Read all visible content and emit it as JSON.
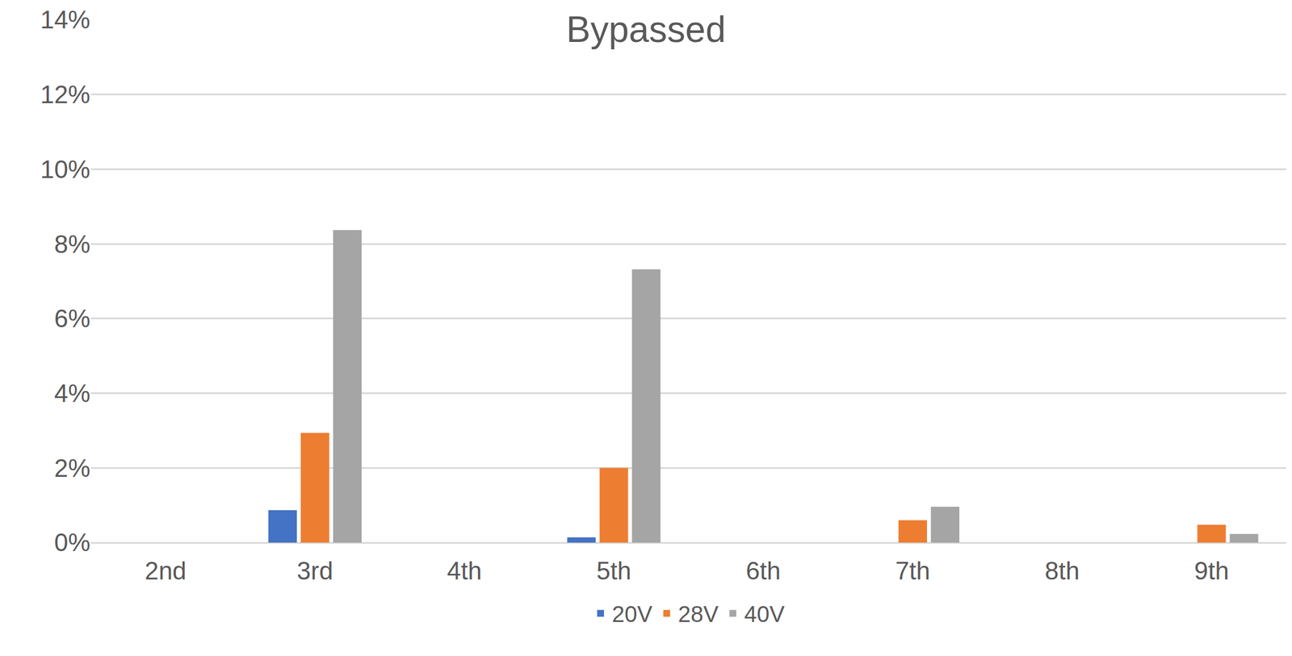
{
  "chart_data": {
    "type": "bar",
    "title": "Bypassed",
    "categories": [
      "2nd",
      "3rd",
      "4th",
      "5th",
      "6th",
      "7th",
      "8th",
      "9th"
    ],
    "series": [
      {
        "name": "20V",
        "color": "#4472c4",
        "values": [
          0,
          0.87,
          0,
          0.14,
          0,
          0,
          0,
          0
        ]
      },
      {
        "name": "28V",
        "color": "#ed7d31",
        "values": [
          0,
          2.94,
          0,
          2.0,
          0,
          0.6,
          0,
          0.48
        ]
      },
      {
        "name": "40V",
        "color": "#a5a5a5",
        "values": [
          0,
          8.37,
          0,
          7.32,
          0,
          0.96,
          0,
          0.23
        ]
      }
    ],
    "ylim": [
      0,
      14
    ],
    "yticks": [
      {
        "value": 0,
        "label": "0%"
      },
      {
        "value": 2,
        "label": "2%"
      },
      {
        "value": 4,
        "label": "4%"
      },
      {
        "value": 6,
        "label": "6%"
      },
      {
        "value": 8,
        "label": "8%"
      },
      {
        "value": 10,
        "label": "10%"
      },
      {
        "value": 12,
        "label": "12%"
      },
      {
        "value": 14,
        "label": "14%"
      }
    ],
    "grid": true,
    "legend": "bottom"
  }
}
